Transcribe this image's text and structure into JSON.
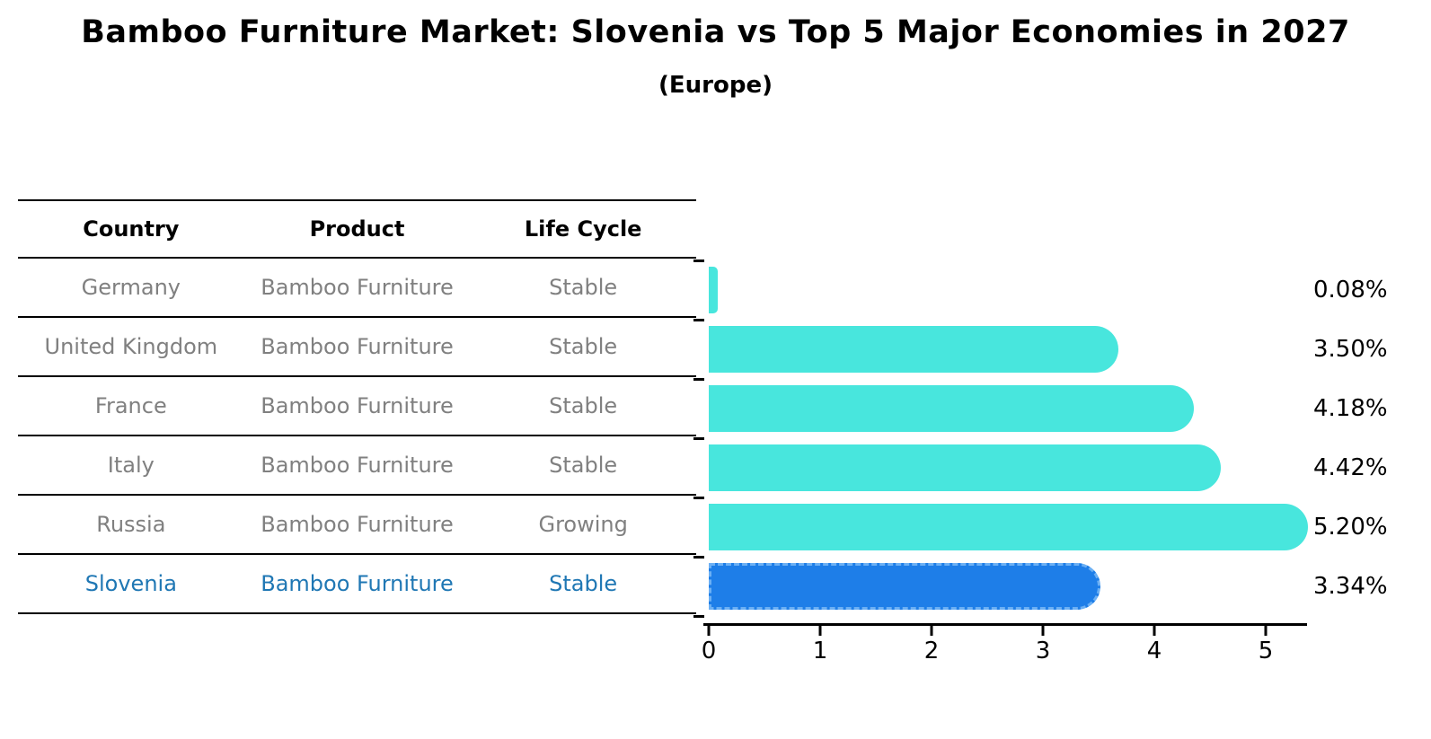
{
  "chart": {
    "title": "Bamboo Furniture Market: Slovenia vs Top 5 Major Economies in 2027",
    "subtitle": "(Europe)"
  },
  "table": {
    "headers": [
      "Country",
      "Product",
      "Life Cycle"
    ]
  },
  "chart_data": {
    "type": "bar",
    "orientation": "horizontal",
    "title": "Bamboo Furniture Market: Slovenia vs Top 5 Major Economies in 2027",
    "subtitle": "(Europe)",
    "xlabel": "",
    "ylabel": "",
    "xlim": [
      0,
      5.4
    ],
    "x_ticks": [
      0,
      1,
      2,
      3,
      4,
      5
    ],
    "grid": false,
    "legend": "none",
    "categories": [
      "Germany",
      "United Kingdom",
      "France",
      "Italy",
      "Russia",
      "Slovenia"
    ],
    "values": [
      0.08,
      3.5,
      4.18,
      4.42,
      5.2,
      3.34
    ],
    "value_labels": [
      "0.08%",
      "3.50%",
      "4.18%",
      "4.42%",
      "5.20%",
      "3.34%"
    ],
    "rows": [
      {
        "country": "Germany",
        "product": "Bamboo Furniture",
        "life_cycle": "Stable",
        "value": 0.08,
        "label": "0.08%",
        "highlight": false
      },
      {
        "country": "United Kingdom",
        "product": "Bamboo Furniture",
        "life_cycle": "Stable",
        "value": 3.5,
        "label": "3.50%",
        "highlight": false
      },
      {
        "country": "France",
        "product": "Bamboo Furniture",
        "life_cycle": "Stable",
        "value": 4.18,
        "label": "4.18%",
        "highlight": false
      },
      {
        "country": "Italy",
        "product": "Bamboo Furniture",
        "life_cycle": "Stable",
        "value": 4.42,
        "label": "4.42%",
        "highlight": false
      },
      {
        "country": "Russia",
        "product": "Bamboo Furniture",
        "life_cycle": "Growing",
        "value": 5.2,
        "label": "5.20%",
        "highlight": false
      },
      {
        "country": "Slovenia",
        "product": "Bamboo Furniture",
        "life_cycle": "Stable",
        "value": 3.34,
        "label": "3.34%",
        "highlight": true
      }
    ],
    "colors": {
      "bar": "#48e6dd",
      "highlight_bar": "#1e7ee8",
      "highlight_bar_border": "#6cb0f4",
      "highlight_text": "#1f77b4",
      "table_text": "#808080",
      "header_text": "#000000",
      "axis": "#000000"
    }
  }
}
